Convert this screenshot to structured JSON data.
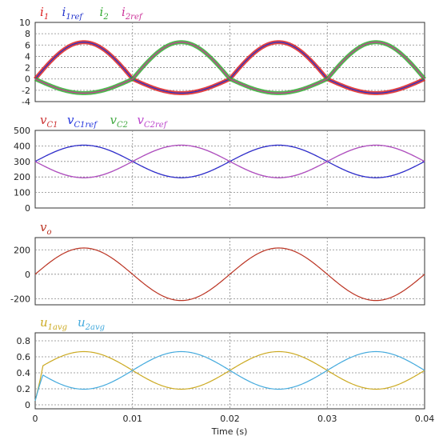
{
  "x_axis": {
    "label": "Time (s)",
    "range": [
      0,
      0.04
    ],
    "ticks": [
      0,
      0.01,
      0.02,
      0.03,
      0.04
    ],
    "tick_labels": [
      "0",
      "0.01",
      "0.02",
      "0.03",
      "0.04"
    ]
  },
  "chart_data": [
    {
      "type": "line",
      "ylim": [
        -4,
        10
      ],
      "yticks": [
        -4,
        -2,
        0,
        2,
        4,
        6,
        8,
        10
      ],
      "grid": true,
      "legend_placement": "top-left",
      "series": [
        {
          "name": "i1",
          "label_main": "i",
          "label_sub": "1",
          "color": "#dd2222",
          "role": "thick-sine-pos",
          "peak": 6.5,
          "trough": -2.5,
          "phase_deg": 0,
          "period": 0.02,
          "form": "i_shape"
        },
        {
          "name": "i1ref",
          "label_main": "i",
          "label_sub": "1ref",
          "color": "#2233cc",
          "role": "thin-sine-pos",
          "peak": 6.5,
          "trough": -2.5,
          "phase_deg": 0,
          "period": 0.02,
          "form": "i_shape"
        },
        {
          "name": "i2",
          "label_main": "i",
          "label_sub": "2",
          "color": "#33aa33",
          "role": "thick-sine-neg",
          "peak": 6.5,
          "trough": -2.5,
          "phase_deg": 180,
          "period": 0.02,
          "form": "i_shape"
        },
        {
          "name": "i2ref",
          "label_main": "i",
          "label_sub": "2ref",
          "color": "#cc3399",
          "role": "thin-sine-neg",
          "peak": 6.5,
          "trough": -2.5,
          "phase_deg": 180,
          "period": 0.02,
          "form": "i_shape"
        }
      ]
    },
    {
      "type": "line",
      "ylim": [
        0,
        500
      ],
      "yticks": [
        0,
        100,
        200,
        300,
        400,
        500
      ],
      "grid": true,
      "legend_placement": "top-left",
      "series": [
        {
          "name": "vC1",
          "label_main": "v",
          "label_sub": "C1",
          "color": "#cc3333",
          "offset": 300,
          "amplitude": 105,
          "phase_deg": 0,
          "period": 0.02
        },
        {
          "name": "vC1ref",
          "label_main": "v",
          "label_sub": "C1ref",
          "color": "#2233dd",
          "offset": 300,
          "amplitude": 105,
          "phase_deg": 0,
          "period": 0.02
        },
        {
          "name": "vC2",
          "label_main": "v",
          "label_sub": "C2",
          "color": "#44aa44",
          "offset": 300,
          "amplitude": 105,
          "phase_deg": 180,
          "period": 0.02
        },
        {
          "name": "vC2ref",
          "label_main": "v",
          "label_sub": "C2ref",
          "color": "#bb44cc",
          "offset": 300,
          "amplitude": 105,
          "phase_deg": 180,
          "period": 0.02
        }
      ]
    },
    {
      "type": "line",
      "ylim": [
        -250,
        300
      ],
      "yticks": [
        -200,
        0,
        200
      ],
      "grid": true,
      "legend_placement": "top-left",
      "series": [
        {
          "name": "vo",
          "label_main": "v",
          "label_sub": "o",
          "color": "#bb3322",
          "offset": 0,
          "amplitude": 215,
          "phase_deg": 0,
          "period": 0.02
        }
      ]
    },
    {
      "type": "line",
      "ylim": [
        -0.05,
        0.9
      ],
      "yticks": [
        0,
        0.2,
        0.4,
        0.6,
        0.8
      ],
      "grid": true,
      "legend_placement": "top-left",
      "series": [
        {
          "name": "u1avg",
          "label_main": "u",
          "label_sub": "1avg",
          "color": "#ccaa22",
          "offset": 0.43,
          "amplitude": 0.235,
          "phase_deg": 0,
          "period": 0.02
        },
        {
          "name": "u2avg",
          "label_main": "u",
          "label_sub": "2avg",
          "color": "#44aadd",
          "offset": 0.43,
          "amplitude": 0.235,
          "phase_deg": 180,
          "period": 0.02
        }
      ]
    }
  ]
}
